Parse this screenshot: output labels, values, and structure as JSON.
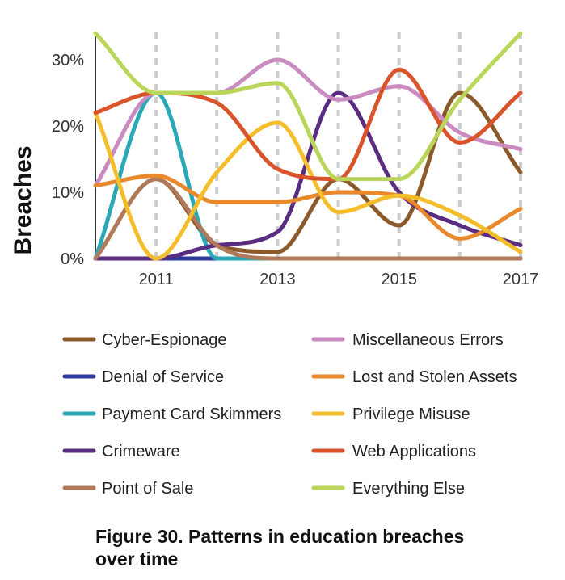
{
  "chart_data": {
    "type": "line",
    "ylabel": "Breaches",
    "xlabel": "",
    "xlim": [
      2010,
      2017
    ],
    "ylim": [
      0,
      34
    ],
    "x": [
      2010,
      2011,
      2012,
      2013,
      2014,
      2015,
      2016,
      2017
    ],
    "xticks": [
      2011,
      2013,
      2015,
      2017
    ],
    "xtick_labels": [
      "2011",
      "2013",
      "2015",
      "2017"
    ],
    "yticks": [
      0,
      10,
      20,
      30
    ],
    "ytick_labels": [
      "0%",
      "10%",
      "20%",
      "30%"
    ],
    "vertical_grid_years": [
      2011,
      2012,
      2013,
      2014,
      2015,
      2016,
      2017
    ],
    "grid": "dashed vertical lines at each year",
    "legend_position": "bottom, two columns",
    "series": [
      {
        "name": "Cyber-Espionage",
        "color": "#8B5A2B",
        "values": [
          0,
          12,
          2,
          1,
          12,
          5,
          25,
          13
        ]
      },
      {
        "name": "Denial of Service",
        "color": "#2E3A9E",
        "values": [
          0,
          0,
          0,
          0,
          0,
          0,
          0,
          0
        ]
      },
      {
        "name": "Payment Card Skimmers",
        "color": "#2BA8B8",
        "values": [
          0,
          25,
          0,
          0,
          0,
          0,
          0,
          0
        ]
      },
      {
        "name": "Crimeware",
        "color": "#5B2D82",
        "values": [
          0,
          0,
          2,
          4,
          25,
          10,
          5,
          2
        ]
      },
      {
        "name": "Point of Sale",
        "color": "#B07A5A",
        "values": [
          0,
          12,
          2,
          0,
          0,
          0,
          0,
          0
        ]
      },
      {
        "name": "Miscellaneous Errors",
        "color": "#C98BC0",
        "values": [
          11,
          25,
          25,
          30,
          24,
          26,
          19,
          16.5
        ]
      },
      {
        "name": "Lost and Stolen Assets",
        "color": "#E8892E",
        "values": [
          11,
          12.5,
          8.5,
          8.5,
          10,
          9.5,
          3,
          7.5
        ]
      },
      {
        "name": "Privilege Misuse",
        "color": "#F4BE2A",
        "values": [
          22,
          0,
          13,
          20.5,
          7,
          9.5,
          6.5,
          1
        ]
      },
      {
        "name": "Web Applications",
        "color": "#D9532B",
        "values": [
          22,
          25,
          23.5,
          13.5,
          12,
          28.5,
          17.5,
          25
        ]
      },
      {
        "name": "Everything Else",
        "color": "#B9D65A",
        "values": [
          34,
          25,
          25,
          26.5,
          12,
          12,
          24,
          34
        ]
      }
    ]
  },
  "caption": {
    "line1": "Figure 30.  Patterns in education breaches",
    "line2": "over time"
  }
}
